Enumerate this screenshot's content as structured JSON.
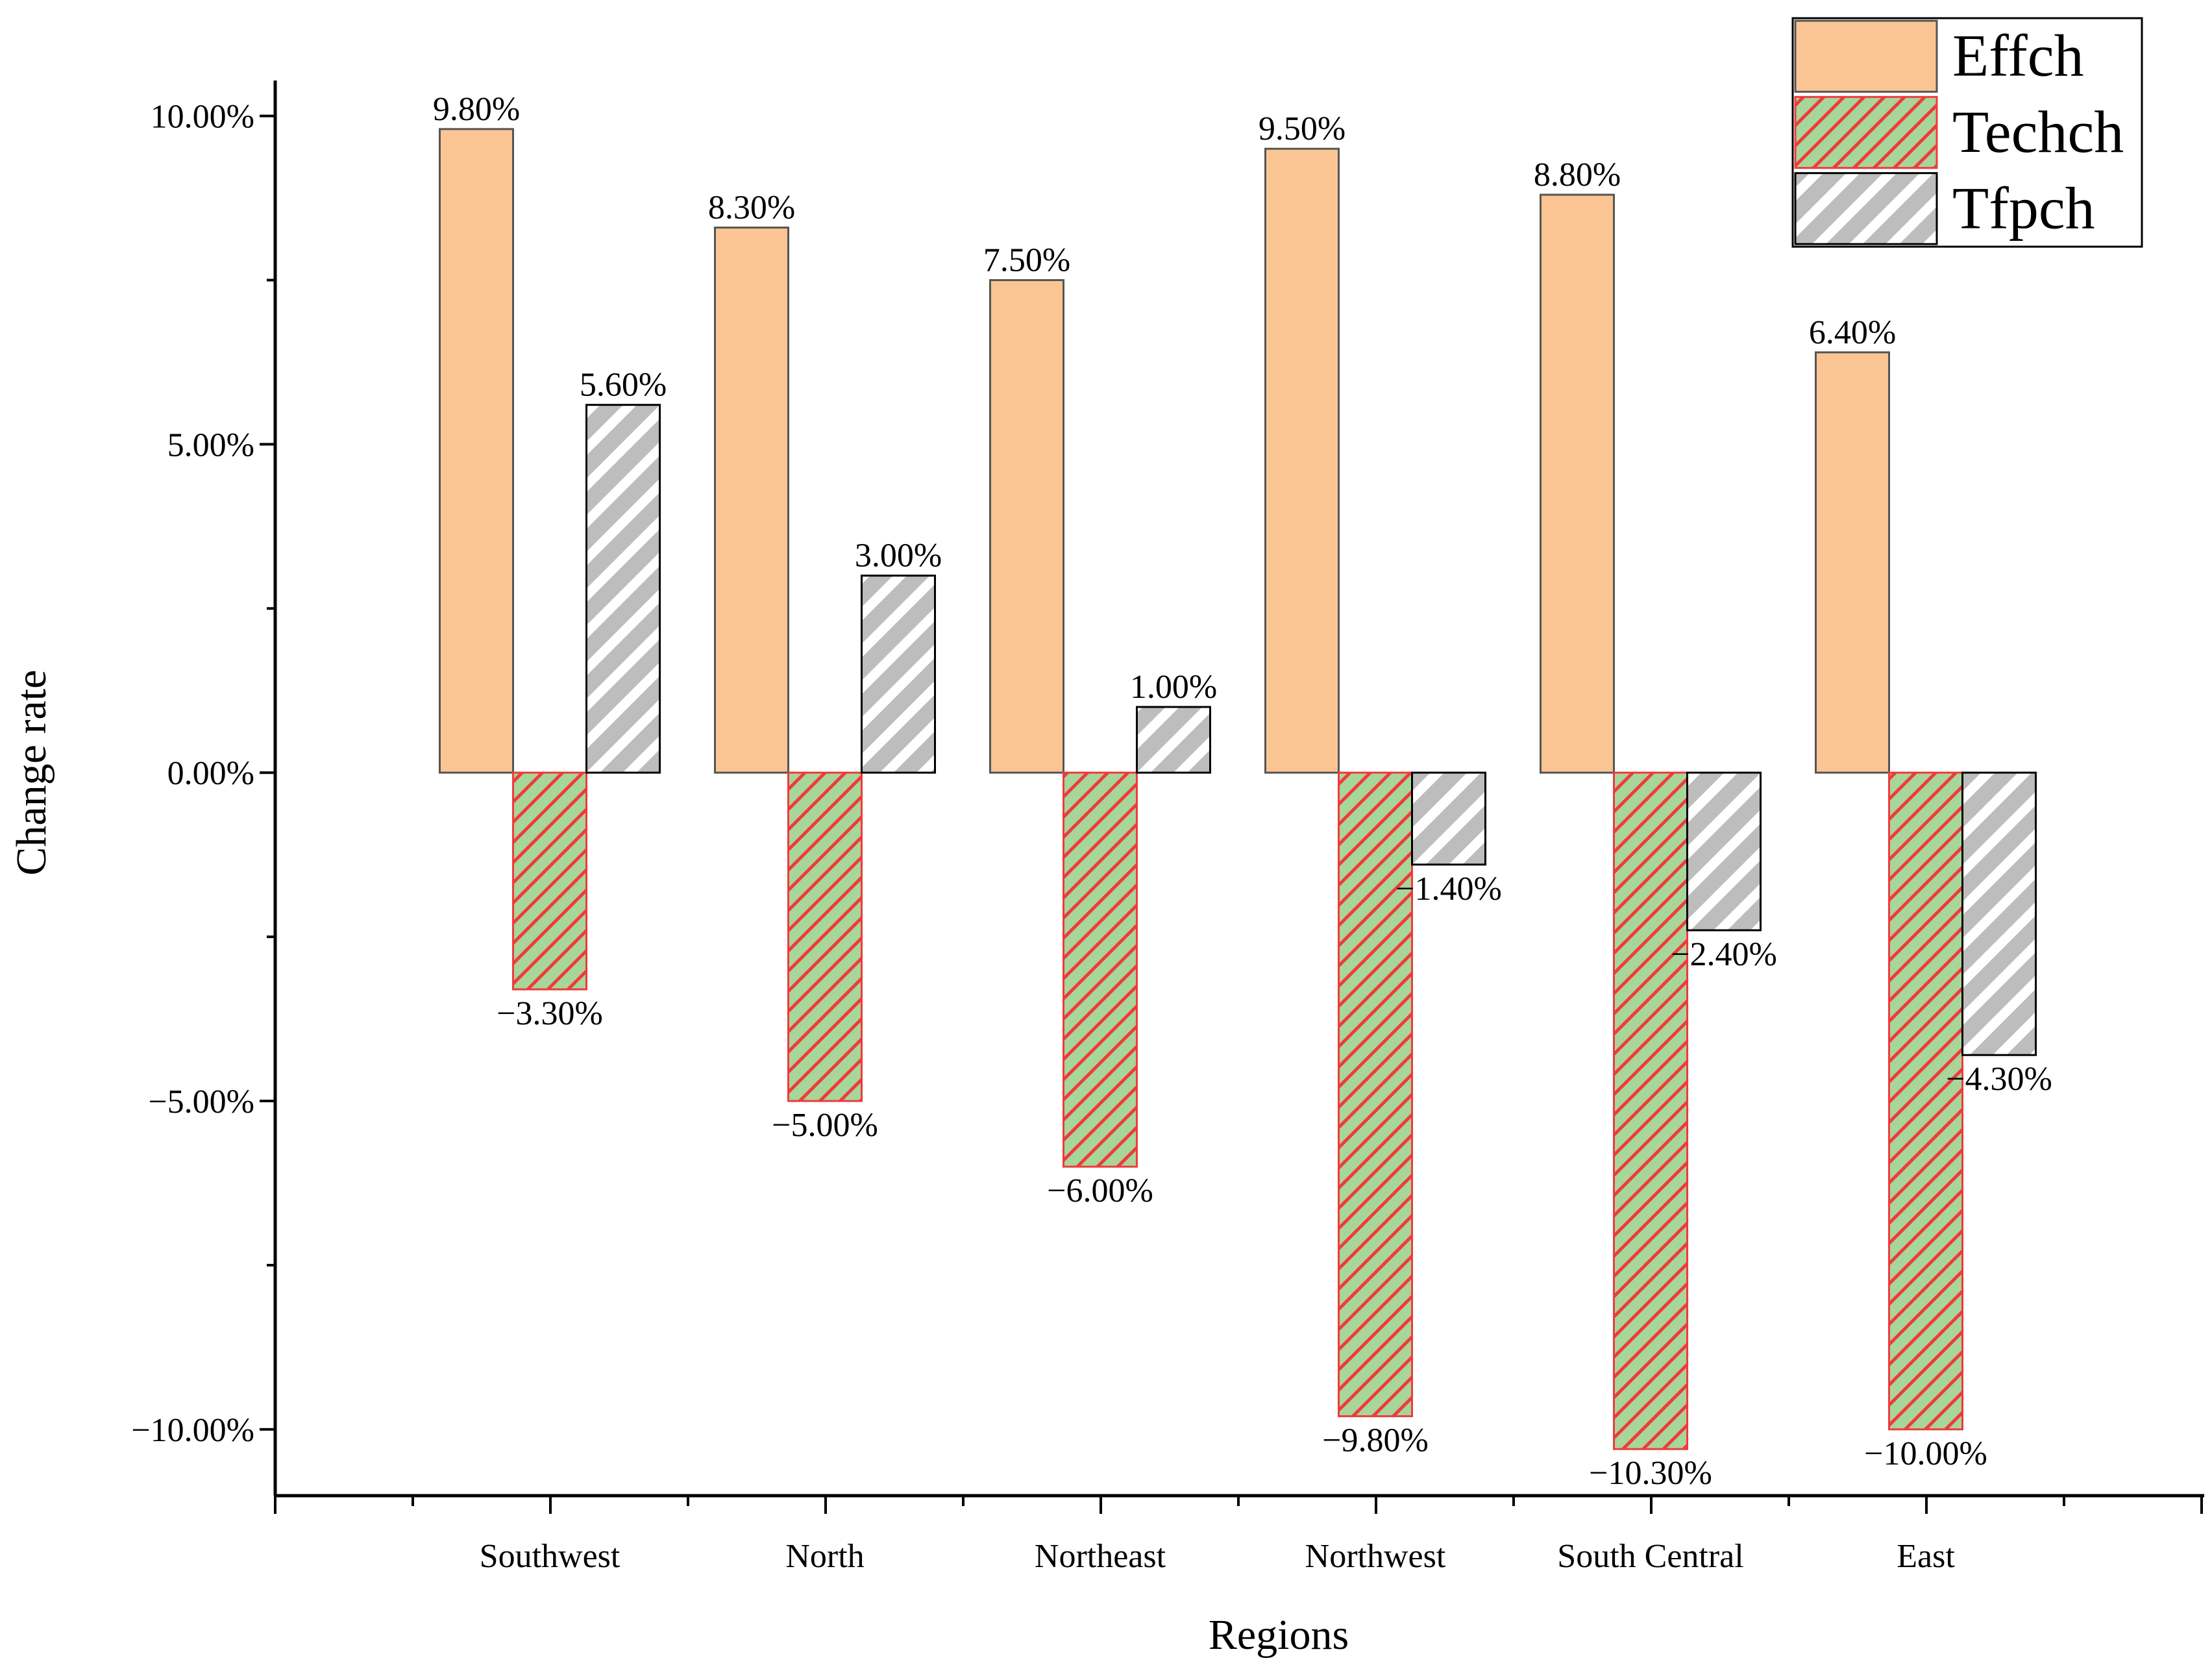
{
  "chart_data": {
    "type": "bar",
    "title": "",
    "xlabel": "Regions",
    "ylabel": "Change rate",
    "ylim": [
      -11.0,
      10.5
    ],
    "yticks": [
      -10,
      -5,
      0,
      5,
      10
    ],
    "ytick_labels": [
      "−10.00%",
      "−5.00%",
      "0.00%",
      "5.00%",
      "10.00%"
    ],
    "categories": [
      "Southwest",
      "North",
      "Northeast",
      "Northwest",
      "South Central",
      "East"
    ],
    "series": [
      {
        "name": "Effch",
        "values": [
          9.8,
          8.3,
          7.5,
          9.5,
          8.8,
          6.4
        ],
        "labels": [
          "9.80%",
          "8.30%",
          "7.50%",
          "9.50%",
          "8.80%",
          "6.40%"
        ],
        "fill": "#fac592",
        "stroke": "#555555",
        "pattern": "none"
      },
      {
        "name": "Techch",
        "values": [
          -3.3,
          -5.0,
          -6.0,
          -9.8,
          -10.3,
          -10.0
        ],
        "labels": [
          "−3.30%",
          "−5.00%",
          "−6.00%",
          "−9.80%",
          "−10.30%",
          "−10.00%"
        ],
        "fill": "#a8d59a",
        "stroke": "#ef3b3b",
        "pattern": "diagonal-thin"
      },
      {
        "name": "Tfpch",
        "values": [
          5.6,
          3.0,
          1.0,
          -1.4,
          -2.4,
          -4.3
        ],
        "labels": [
          "5.60%",
          "3.00%",
          "1.00%",
          "−1.40%",
          "−2.40%",
          "−4.30%"
        ],
        "fill": "#bdbdbd",
        "stroke": "#000000",
        "pattern": "diagonal-wide"
      }
    ],
    "legend": {
      "position": "top-right",
      "entries": [
        "Effch",
        "Techch",
        "Tfpch"
      ]
    },
    "grid": false
  }
}
